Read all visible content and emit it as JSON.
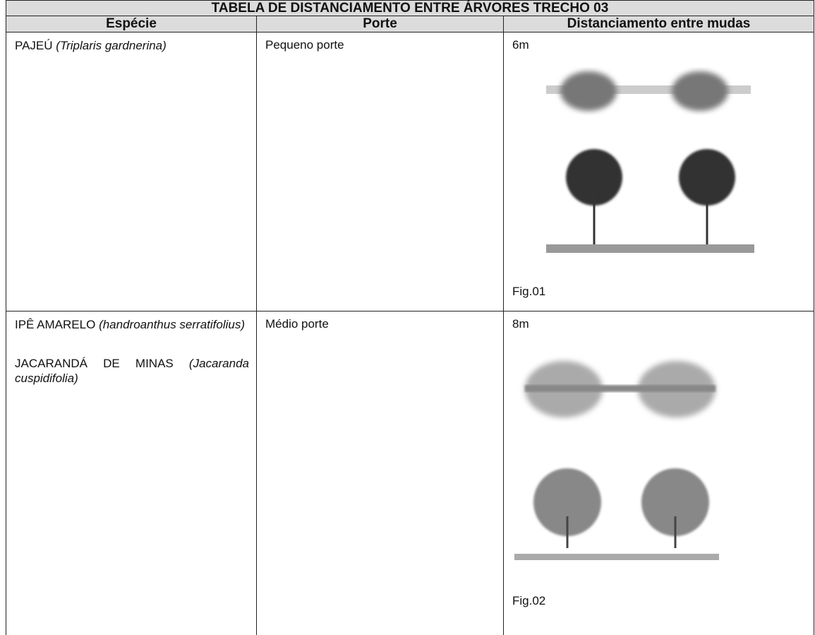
{
  "table": {
    "title": "TABELA DE DISTANCIAMENTO ENTRE ÁRVORES TRECHO 03",
    "headers": [
      "Espécie",
      "Porte",
      "Distanciamento entre mudas"
    ],
    "rows": [
      {
        "species": [
          {
            "name": "PAJEÚ",
            "scientific": "(Triplaris gardnerina)"
          }
        ],
        "size": "Pequeno porte",
        "spacing": "6m",
        "figure": "Fig.01"
      },
      {
        "species": [
          {
            "name": "IPÊ AMARELO",
            "scientific": "(handroanthus serratifolius)"
          },
          {
            "name": "JACARANDÁ DE MINAS",
            "scientific": "(Jacaranda cuspidifolia)"
          }
        ],
        "size": "Médio porte",
        "spacing": "8m",
        "figure": "Fig.02"
      }
    ]
  }
}
